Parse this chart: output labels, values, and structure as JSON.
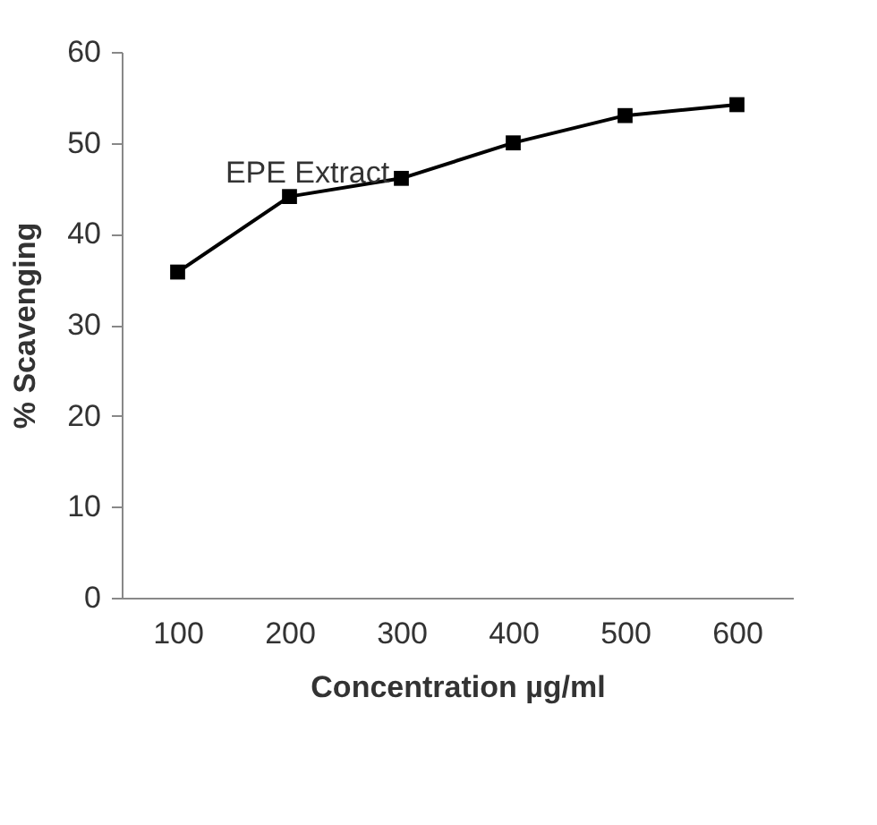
{
  "chart_data": {
    "type": "line",
    "xlabel": "Concentration µg/ml",
    "ylabel": "% Scavenging",
    "categories": [
      "100",
      "200",
      "300",
      "400",
      "500",
      "600"
    ],
    "series": [
      {
        "name": "EPE Extract",
        "color": "#000000",
        "values": [
          35.8,
          44.1,
          46.1,
          50.0,
          53.0,
          54.2
        ]
      }
    ],
    "ylim": [
      0,
      60
    ],
    "yticks": [
      0,
      10,
      20,
      30,
      40,
      50,
      60
    ],
    "grid": false,
    "legend": false,
    "marker": "square",
    "line_style": "solid"
  }
}
